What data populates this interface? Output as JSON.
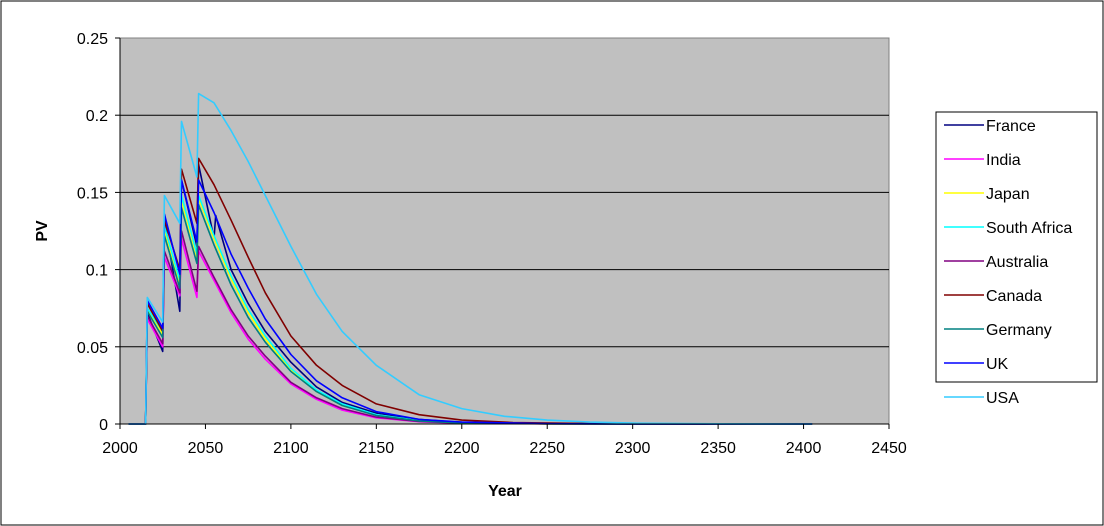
{
  "chart_data": {
    "type": "line",
    "title": "",
    "xlabel": "Year",
    "ylabel": "PV",
    "xlim": [
      2000,
      2450
    ],
    "ylim": [
      0,
      0.25
    ],
    "x_ticks": [
      2000,
      2050,
      2100,
      2150,
      2200,
      2250,
      2300,
      2350,
      2400,
      2450
    ],
    "y_ticks": [
      0,
      0.05,
      0.1,
      0.15,
      0.2,
      0.25
    ],
    "y_tick_labels": [
      "0",
      "0.05",
      "0.1",
      "0.15",
      "0.2",
      "0.25"
    ],
    "grid": "horizontal major gridlines",
    "plot_background": "#c0c0c0",
    "legend_position": "right",
    "series": [
      {
        "name": "France",
        "color": "#000080",
        "x": [
          2005,
          2015,
          2016,
          2025,
          2026,
          2035,
          2036,
          2045,
          2046,
          2055,
          2056,
          2065,
          2075,
          2085,
          2100,
          2115,
          2130,
          2150,
          2175,
          2200,
          2250,
          2300,
          2350,
          2405
        ],
        "y": [
          0,
          0,
          0.072,
          0.047,
          0.132,
          0.073,
          0.158,
          0.115,
          0.168,
          0.12,
          0.135,
          0.1,
          0.078,
          0.06,
          0.04,
          0.024,
          0.014,
          0.007,
          0.003,
          0.001,
          0.0003,
          0.0001,
          0,
          0
        ]
      },
      {
        "name": "India",
        "color": "#ff00ff",
        "x": [
          2005,
          2015,
          2016,
          2025,
          2026,
          2035,
          2036,
          2045,
          2046,
          2055,
          2065,
          2075,
          2085,
          2100,
          2115,
          2130,
          2150,
          2175,
          2200,
          2250,
          2300,
          2405
        ],
        "y": [
          0,
          0,
          0.068,
          0.05,
          0.108,
          0.083,
          0.12,
          0.082,
          0.112,
          0.093,
          0.072,
          0.055,
          0.042,
          0.026,
          0.016,
          0.009,
          0.004,
          0.0015,
          0.0005,
          0.0001,
          0,
          0
        ]
      },
      {
        "name": "Japan",
        "color": "#ffff00",
        "x": [
          2005,
          2015,
          2016,
          2025,
          2026,
          2035,
          2036,
          2045,
          2046,
          2055,
          2065,
          2075,
          2085,
          2100,
          2115,
          2130,
          2150,
          2175,
          2200,
          2250,
          2300,
          2405
        ],
        "y": [
          0,
          0,
          0.074,
          0.058,
          0.126,
          0.09,
          0.145,
          0.108,
          0.146,
          0.12,
          0.094,
          0.072,
          0.055,
          0.035,
          0.021,
          0.012,
          0.006,
          0.002,
          0.0008,
          0.0001,
          0,
          0
        ]
      },
      {
        "name": "South Africa",
        "color": "#00ffff",
        "x": [
          2005,
          2015,
          2016,
          2025,
          2026,
          2035,
          2036,
          2045,
          2046,
          2055,
          2065,
          2075,
          2085,
          2100,
          2115,
          2130,
          2150,
          2175,
          2200,
          2250,
          2300,
          2405
        ],
        "y": [
          0,
          0,
          0.075,
          0.06,
          0.128,
          0.093,
          0.148,
          0.11,
          0.148,
          0.122,
          0.096,
          0.074,
          0.057,
          0.036,
          0.022,
          0.013,
          0.006,
          0.0022,
          0.0009,
          0.0001,
          0,
          0
        ]
      },
      {
        "name": "Australia",
        "color": "#800080",
        "x": [
          2005,
          2015,
          2016,
          2025,
          2026,
          2035,
          2036,
          2045,
          2046,
          2055,
          2065,
          2075,
          2085,
          2100,
          2115,
          2130,
          2150,
          2175,
          2200,
          2250,
          2300,
          2405
        ],
        "y": [
          0,
          0,
          0.07,
          0.052,
          0.112,
          0.085,
          0.125,
          0.086,
          0.115,
          0.095,
          0.074,
          0.057,
          0.044,
          0.027,
          0.017,
          0.01,
          0.0045,
          0.0017,
          0.0006,
          0.0001,
          0,
          0
        ]
      },
      {
        "name": "Canada",
        "color": "#800000",
        "x": [
          2005,
          2015,
          2016,
          2025,
          2026,
          2035,
          2036,
          2045,
          2046,
          2055,
          2065,
          2075,
          2085,
          2100,
          2115,
          2130,
          2150,
          2175,
          2200,
          2230,
          2275,
          2300,
          2405
        ],
        "y": [
          0,
          0,
          0.078,
          0.06,
          0.132,
          0.1,
          0.165,
          0.13,
          0.172,
          0.155,
          0.132,
          0.108,
          0.085,
          0.057,
          0.038,
          0.025,
          0.013,
          0.006,
          0.0025,
          0.001,
          0.0003,
          0.0001,
          0
        ]
      },
      {
        "name": "Germany",
        "color": "#008080",
        "x": [
          2005,
          2015,
          2016,
          2025,
          2026,
          2035,
          2036,
          2045,
          2046,
          2055,
          2065,
          2075,
          2085,
          2100,
          2115,
          2130,
          2150,
          2175,
          2200,
          2250,
          2300,
          2405
        ],
        "y": [
          0,
          0,
          0.073,
          0.056,
          0.122,
          0.088,
          0.14,
          0.104,
          0.142,
          0.116,
          0.09,
          0.069,
          0.053,
          0.034,
          0.021,
          0.012,
          0.0055,
          0.002,
          0.0007,
          0.0001,
          0,
          0
        ]
      },
      {
        "name": "UK",
        "color": "#0000ff",
        "x": [
          2005,
          2015,
          2016,
          2025,
          2026,
          2035,
          2036,
          2045,
          2046,
          2055,
          2065,
          2075,
          2085,
          2100,
          2115,
          2130,
          2150,
          2175,
          2200,
          2250,
          2300,
          2405
        ],
        "y": [
          0,
          0,
          0.08,
          0.062,
          0.136,
          0.097,
          0.158,
          0.118,
          0.158,
          0.137,
          0.11,
          0.088,
          0.068,
          0.045,
          0.028,
          0.017,
          0.008,
          0.003,
          0.0012,
          0.0002,
          0,
          0
        ]
      },
      {
        "name": "USA",
        "color": "#33ccff",
        "x": [
          2005,
          2015,
          2016,
          2025,
          2026,
          2035,
          2036,
          2045,
          2046,
          2055,
          2065,
          2075,
          2085,
          2100,
          2115,
          2130,
          2150,
          2175,
          2200,
          2225,
          2250,
          2275,
          2300,
          2350,
          2405
        ],
        "y": [
          0,
          0,
          0.082,
          0.066,
          0.148,
          0.13,
          0.196,
          0.16,
          0.214,
          0.208,
          0.19,
          0.17,
          0.148,
          0.115,
          0.084,
          0.06,
          0.038,
          0.019,
          0.01,
          0.005,
          0.0025,
          0.0012,
          0.0006,
          0.0001,
          0
        ]
      }
    ]
  }
}
